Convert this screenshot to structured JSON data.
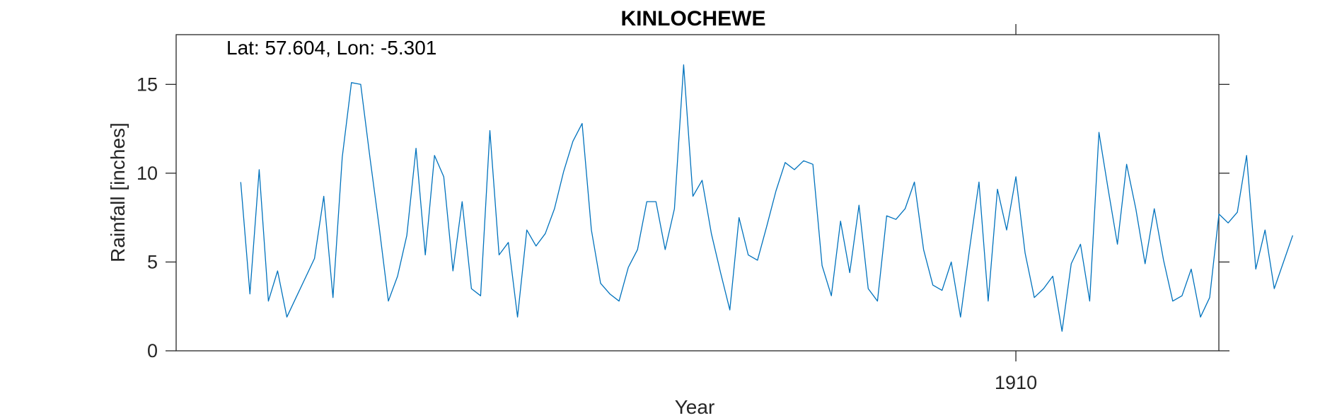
{
  "chart_data": {
    "type": "line",
    "title": "KINLOCHEWE",
    "xlabel": "Year",
    "ylabel": "Rainfall [inches]",
    "annotation": "Lat: 57.604, Lon: -5.301",
    "xlim": [
      1902.417,
      1911.833
    ],
    "ylim": [
      0,
      17.8
    ],
    "y_ticks": [
      0,
      5,
      10,
      15
    ],
    "x_ticks": [
      1910
    ],
    "x_tick_labels": [
      "1910"
    ],
    "grid": false,
    "series": [
      {
        "color": "#0072BD",
        "x_start": 1903.0,
        "x_step_months": 1,
        "values": [
          9.5,
          3.2,
          10.2,
          2.8,
          4.5,
          1.9,
          3.0,
          4.1,
          5.2,
          8.7,
          3.0,
          10.9,
          15.1,
          15.0,
          10.9,
          7.0,
          2.8,
          4.2,
          6.5,
          11.4,
          5.4,
          11.0,
          9.8,
          4.5,
          8.4,
          3.5,
          3.1,
          12.4,
          5.4,
          6.1,
          1.9,
          6.8,
          5.9,
          6.6,
          8.0,
          10.1,
          11.8,
          12.8,
          6.8,
          3.8,
          3.2,
          2.8,
          4.7,
          5.7,
          8.4,
          8.4,
          5.7,
          8.0,
          16.1,
          8.7,
          9.6,
          6.6,
          4.4,
          2.3,
          7.5,
          5.4,
          5.1,
          7.0,
          9.0,
          10.6,
          10.2,
          10.7,
          10.5,
          4.8,
          3.1,
          7.3,
          4.4,
          8.2,
          3.5,
          2.8,
          7.6,
          7.4,
          8.0,
          9.5,
          5.7,
          3.7,
          3.4,
          5.0,
          1.9,
          5.8,
          9.5,
          2.8,
          9.1,
          6.8,
          9.8,
          5.5,
          3.0,
          3.5,
          4.2,
          1.1,
          4.9,
          6.0,
          2.8,
          12.3,
          9.1,
          6.0,
          10.5,
          8.0,
          4.9,
          8.0,
          5.1,
          2.8,
          3.1,
          4.6,
          1.9,
          3.0,
          7.7,
          7.2,
          7.8,
          11.0,
          4.6,
          6.8,
          3.5,
          5.0,
          6.5
        ]
      }
    ]
  }
}
